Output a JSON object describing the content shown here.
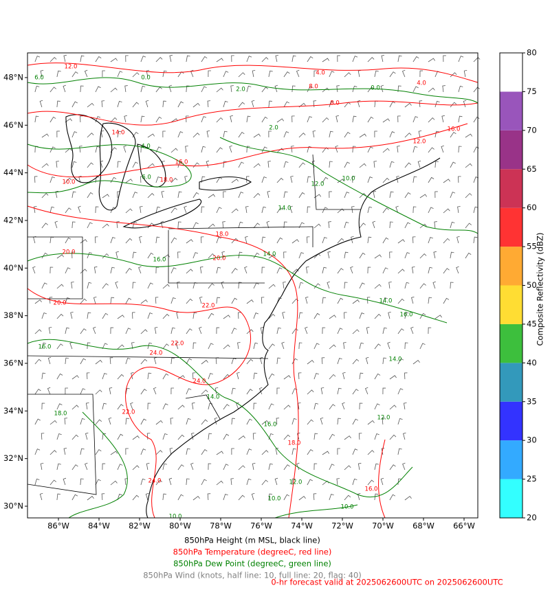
{
  "map": {
    "lon_ticks": [
      {
        "value": -86,
        "label": "86°W"
      },
      {
        "value": -84,
        "label": "84°W"
      },
      {
        "value": -82,
        "label": "82°W"
      },
      {
        "value": -80,
        "label": "80°W"
      },
      {
        "value": -78,
        "label": "78°W"
      },
      {
        "value": -76,
        "label": "76°W"
      },
      {
        "value": -74,
        "label": "74°W"
      },
      {
        "value": -72,
        "label": "72°W"
      },
      {
        "value": -70,
        "label": "70°W"
      },
      {
        "value": -68,
        "label": "68°W"
      },
      {
        "value": -66,
        "label": "66°W"
      }
    ],
    "lat_ticks": [
      {
        "value": 48,
        "label": "48°N"
      },
      {
        "value": 46,
        "label": "46°N"
      },
      {
        "value": 44,
        "label": "44°N"
      },
      {
        "value": 42,
        "label": "42°N"
      },
      {
        "value": 40,
        "label": "40°N"
      },
      {
        "value": 38,
        "label": "38°N"
      },
      {
        "value": 36,
        "label": "36°N"
      },
      {
        "value": 34,
        "label": "34°N"
      },
      {
        "value": 32,
        "label": "32°N"
      },
      {
        "value": 30,
        "label": "30°N"
      }
    ],
    "temperature_color": "#ff0000",
    "dewpoint_color": "#008000",
    "temperature_labels": [
      "12.0",
      "4.0",
      "8.0",
      "4.0",
      "8.0",
      "16.0",
      "12.0",
      "14.0",
      "16.0",
      "18.0",
      "10.0",
      "18.0",
      "20.0",
      "20.0",
      "20.0",
      "22.0",
      "22.0",
      "24.0",
      "24.0",
      "22.0",
      "18.0",
      "24.0",
      "16.0"
    ],
    "dewpoint_labels": [
      "6.0",
      "0.0",
      "2.0",
      "0.0",
      "2.0",
      "4.0",
      "6.0",
      "12.0",
      "10.0",
      "14.0",
      "16.0",
      "14.0",
      "14.0",
      "16.0",
      "16.0",
      "14.0",
      "16.0",
      "10.0",
      "12.0",
      "10.0",
      "12.0",
      "14.0",
      "10.0",
      "18.0"
    ]
  },
  "colorbar": {
    "label": "Composite Reflectivity (dBZ)",
    "bounds": [
      20,
      25,
      30,
      35,
      40,
      45,
      50,
      55,
      60,
      65,
      70,
      75,
      80
    ],
    "colors": [
      "#33ffff",
      "#33aaff",
      "#3333ff",
      "#3399bb",
      "#3dbf3d",
      "#ffdd33",
      "#ffaa33",
      "#ff3333",
      "#cc3355",
      "#993388",
      "#9955bb",
      "#ffffff"
    ],
    "ticks": [
      20,
      25,
      30,
      35,
      40,
      45,
      50,
      55,
      60,
      65,
      70,
      75,
      80
    ]
  },
  "legend": {
    "height": "850hPa Height (m MSL, black line)",
    "temperature": "850hPa Temperature (degreeC, red line)",
    "dewpoint": "850hPa Dew Point (degreeC, green line)",
    "wind": "850hPa Wind (knots, half line: 10, full line: 20, flag: 40)",
    "valid": "0-hr forecast valid at 2025062600UTC on 2025062600UTC"
  }
}
